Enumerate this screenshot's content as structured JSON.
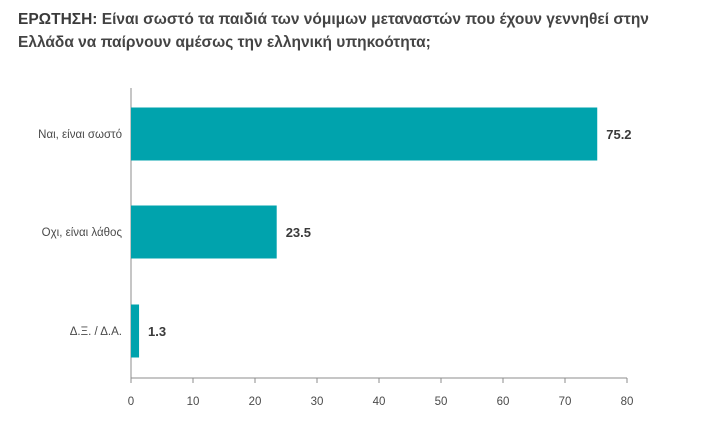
{
  "title": {
    "lead": "ΕΡΩΤΗΣΗ:",
    "text": "Είναι σωστό τα παιδιά των νόμιμων μεταναστών που έχουν γεννηθεί στην Ελλάδα να παίρνουν αμέσως την ελληνική υπηκοότητα;"
  },
  "chart_data": {
    "type": "bar",
    "orientation": "horizontal",
    "categories": [
      "Ναι, είναι σωστό",
      "Οχι, είναι λάθος",
      "Δ.Ξ. / Δ.Α."
    ],
    "values": [
      75.2,
      23.5,
      1.3
    ],
    "value_labels": [
      "75.2",
      "23.5",
      "1.3"
    ],
    "xlim": [
      0,
      80
    ],
    "xticks": [
      0,
      10,
      20,
      30,
      40,
      50,
      60,
      70,
      80
    ],
    "grid": false,
    "bar_color": "#00a3ad"
  }
}
